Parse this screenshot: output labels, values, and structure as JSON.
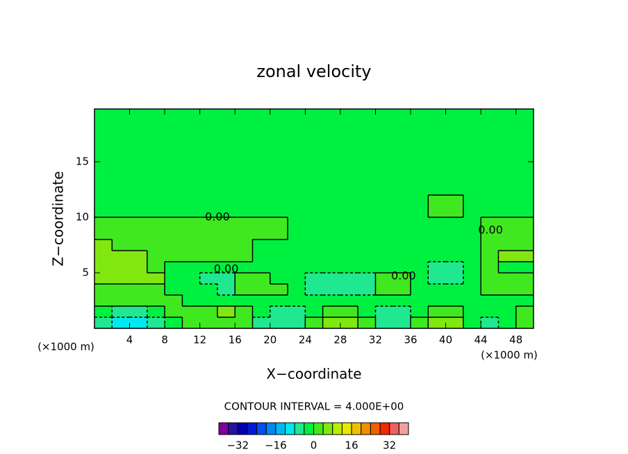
{
  "chart_data": {
    "type": "contour",
    "title": "zonal velocity",
    "x_label": "X−coordinate",
    "y_label": "Z−coordinate",
    "x_unit": "(×1000 m)",
    "contour_note": "CONTOUR INTERVAL = 4.000E+00",
    "xlim": [
      0,
      50
    ],
    "ylim": [
      0,
      19.75
    ],
    "xticks": [
      4,
      8,
      12,
      16,
      20,
      24,
      28,
      32,
      36,
      40,
      44,
      48
    ],
    "yticks": [
      5,
      10,
      15
    ],
    "x_edges": [
      0,
      2,
      4,
      6,
      8,
      10,
      12,
      14,
      16,
      18,
      20,
      22,
      24,
      26,
      28,
      30,
      32,
      34,
      36,
      38,
      40,
      42,
      44,
      46,
      48,
      50
    ],
    "y_edges": [
      0,
      1,
      2,
      3,
      4,
      5,
      6,
      7,
      8,
      10,
      12,
      19.75
    ],
    "z": [
      [
        -6,
        -10,
        -10,
        -6,
        -1,
        2,
        2,
        2,
        2,
        -6,
        -6,
        -6,
        2,
        6,
        6,
        2,
        -6,
        -6,
        2,
        6,
        6,
        -1,
        -6,
        -1,
        2
      ],
      [
        -1,
        -6,
        -6,
        -1,
        2,
        2,
        2,
        6,
        2,
        -1,
        -6,
        -6,
        -1,
        2,
        2,
        -1,
        -6,
        -6,
        -1,
        2,
        2,
        -1,
        -1,
        -1,
        2
      ],
      [
        2,
        2,
        2,
        2,
        2,
        -1,
        -1,
        -1,
        -1,
        -1,
        -1,
        -1,
        -1,
        -1,
        -1,
        -1,
        -1,
        -1,
        -1,
        -1,
        -1,
        -1,
        -1,
        -1,
        -1
      ],
      [
        2,
        2,
        2,
        2,
        -1,
        -1,
        -1,
        -6,
        2,
        2,
        2,
        -1,
        -6,
        -6,
        -6,
        -6,
        2,
        2,
        -1,
        -1,
        -1,
        -1,
        2,
        2,
        2
      ],
      [
        6,
        6,
        6,
        6,
        -1,
        -1,
        -6,
        -6,
        2,
        2,
        -1,
        -1,
        -6,
        -6,
        -6,
        -6,
        2,
        2,
        -1,
        -6,
        -6,
        -1,
        2,
        2,
        2
      ],
      [
        6,
        6,
        6,
        2,
        -1,
        -1,
        -1,
        -1,
        -1,
        -1,
        -1,
        -1,
        -1,
        -1,
        -1,
        -1,
        -1,
        -1,
        -1,
        -6,
        -6,
        -1,
        2,
        -1,
        -1
      ],
      [
        6,
        6,
        6,
        2,
        2,
        2,
        2,
        2,
        2,
        -1,
        -1,
        -1,
        -1,
        -1,
        -1,
        -1,
        -1,
        -1,
        -1,
        -1,
        -1,
        -1,
        2,
        6,
        6
      ],
      [
        6,
        2,
        2,
        2,
        2,
        2,
        2,
        2,
        2,
        -1,
        -1,
        -1,
        -1,
        -1,
        -1,
        -1,
        -1,
        -1,
        -1,
        -1,
        -1,
        -1,
        2,
        2,
        2
      ],
      [
        2,
        2,
        2,
        2,
        2,
        2,
        2,
        2,
        2,
        2,
        2,
        -1,
        -1,
        -1,
        -1,
        -1,
        -1,
        -1,
        -1,
        -1,
        -1,
        -1,
        2,
        2,
        2
      ],
      [
        -1,
        -1,
        -1,
        -1,
        -1,
        -1,
        -1,
        -1,
        -1,
        -1,
        -1,
        -1,
        -1,
        -1,
        -1,
        -1,
        -1,
        -1,
        -1,
        2,
        2,
        -1,
        -1,
        -1,
        -1
      ],
      [
        -1,
        -1,
        -1,
        -1,
        -1,
        -1,
        -1,
        -1,
        -1,
        -1,
        -1,
        -1,
        -1,
        -1,
        -1,
        -1,
        -1,
        -1,
        -1,
        -1,
        -1,
        -1,
        -1,
        -1,
        -1
      ]
    ],
    "levels": [
      -40,
      -36,
      -32,
      -28,
      -24,
      -20,
      -16,
      -12,
      -8,
      -4,
      0,
      4,
      8,
      12,
      16,
      20,
      24,
      28,
      32,
      36,
      40
    ],
    "colors": [
      "#8000a0",
      "#2810a0",
      "#0000b4",
      "#0018dc",
      "#0050f0",
      "#0088f0",
      "#00b8f0",
      "#00e8f0",
      "#20e890",
      "#00f040",
      "#40e820",
      "#80e810",
      "#b8f000",
      "#e8e800",
      "#f0c000",
      "#f09000",
      "#f06000",
      "#f02800",
      "#f06060",
      "#f0a0a0"
    ],
    "colorbar_ticks": [
      {
        "value": -32,
        "label": "−32"
      },
      {
        "value": -16,
        "label": "−16"
      },
      0,
      16,
      32
    ],
    "annotations": [
      {
        "text": "0.00",
        "x": 14,
        "y": 10
      },
      {
        "text": "0.00",
        "x": 15,
        "y": 5.3
      },
      {
        "text": "0.00",
        "x": 35.2,
        "y": 4.7
      },
      {
        "text": "0.00",
        "x": 45.1,
        "y": 8.8
      }
    ]
  }
}
